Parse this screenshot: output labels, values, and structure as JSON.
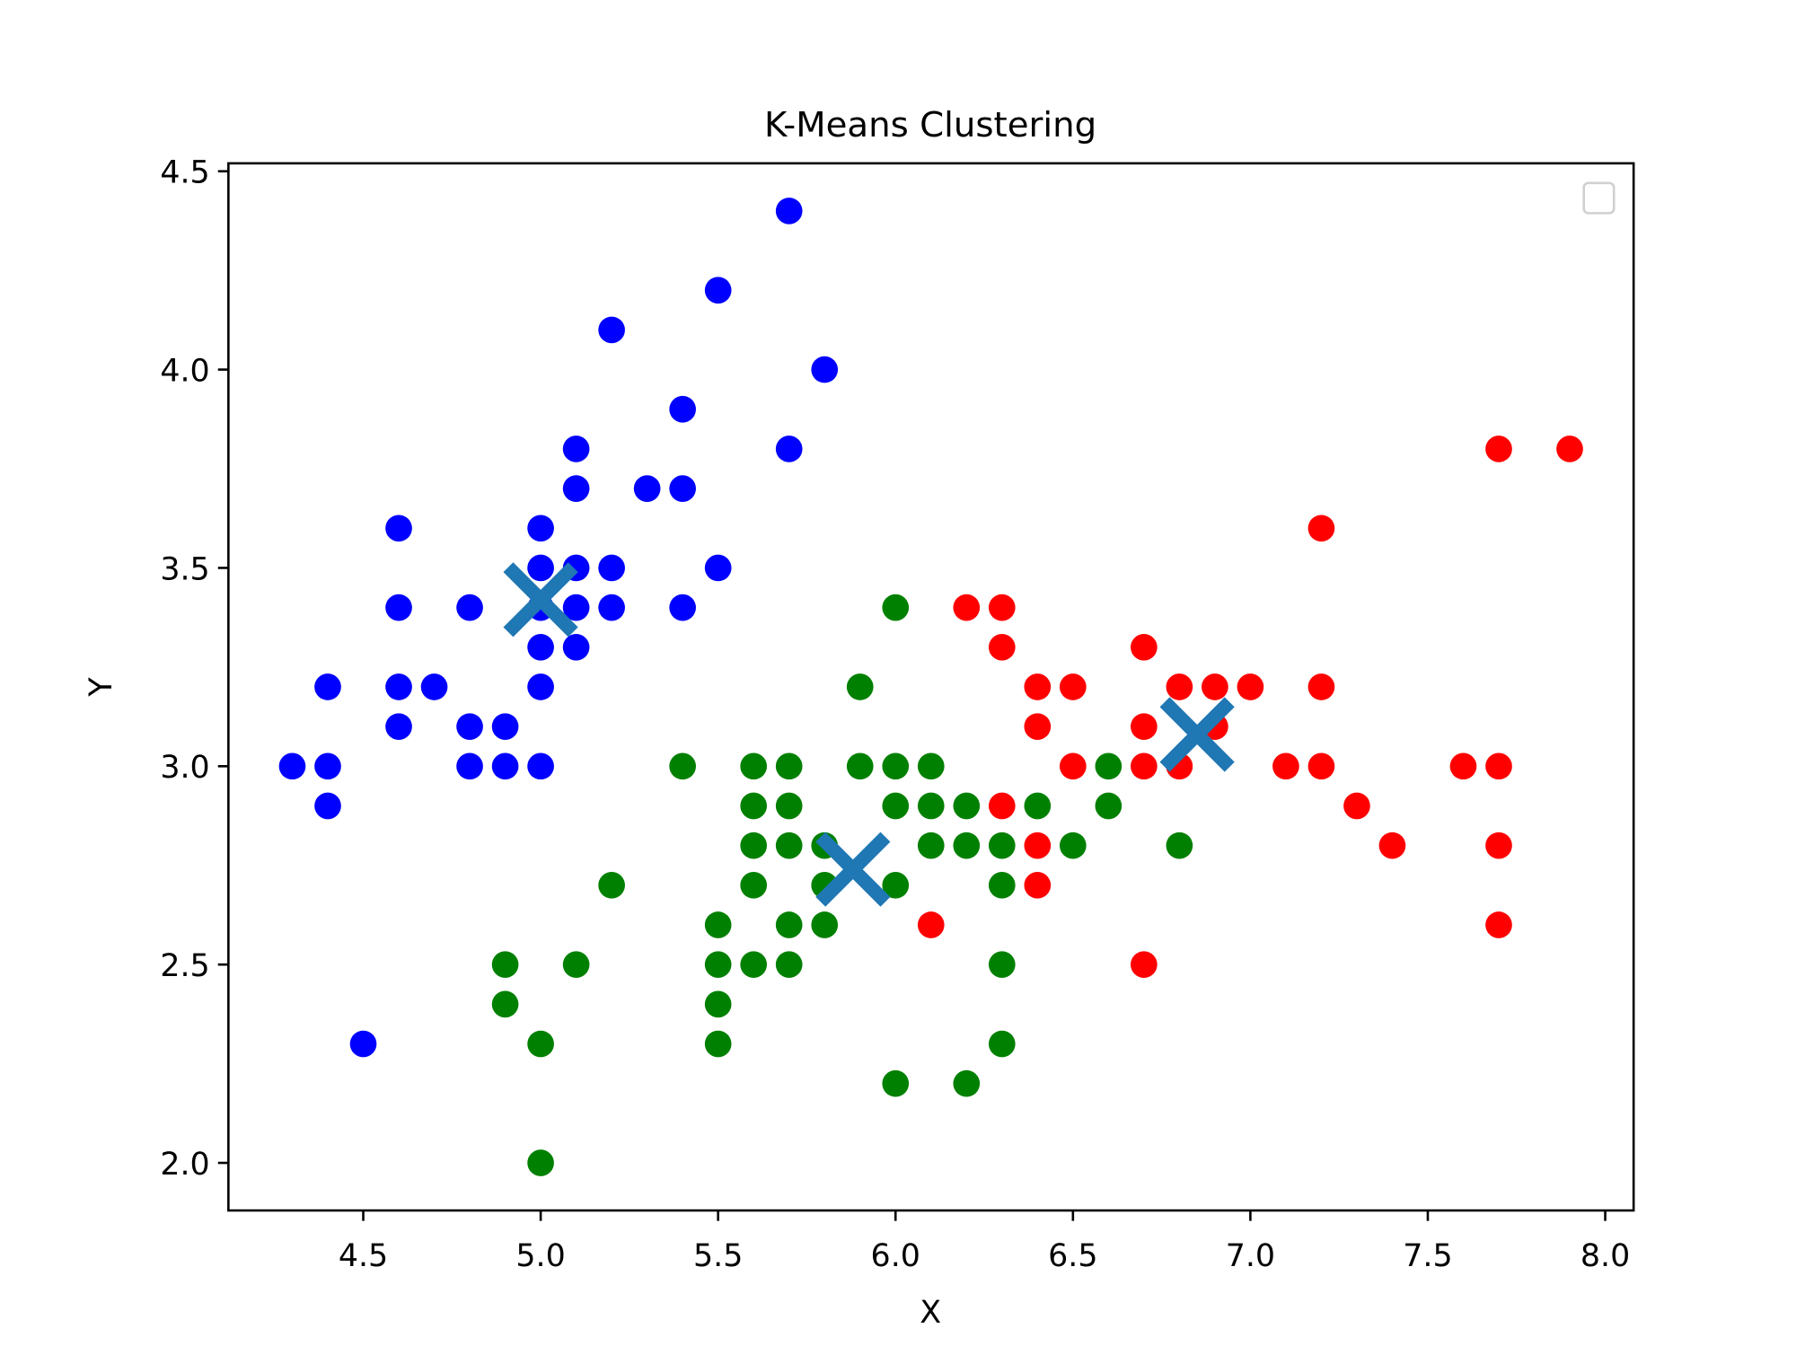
{
  "chart_data": {
    "type": "scatter",
    "title": "K-Means Clustering",
    "xlabel": "X",
    "ylabel": "Y",
    "xlim": [
      4.12,
      8.08
    ],
    "ylim": [
      1.88,
      4.52
    ],
    "xticks": [
      "4.5",
      "5.0",
      "5.5",
      "6.0",
      "6.5",
      "7.0",
      "7.5",
      "8.0"
    ],
    "yticks": [
      "2.0",
      "2.5",
      "3.0",
      "3.5",
      "4.0",
      "4.5"
    ],
    "grid": false,
    "legend": {
      "placement": "top-right",
      "entries": []
    },
    "series": [
      {
        "color": "#0000ff",
        "points": [
          [
            4.3,
            3.0
          ],
          [
            4.4,
            3.0
          ],
          [
            4.4,
            2.9
          ],
          [
            4.4,
            3.2
          ],
          [
            4.5,
            2.3
          ],
          [
            4.6,
            3.1
          ],
          [
            4.6,
            3.2
          ],
          [
            4.6,
            3.4
          ],
          [
            4.6,
            3.6
          ],
          [
            4.7,
            3.2
          ],
          [
            4.8,
            3.0
          ],
          [
            4.8,
            3.1
          ],
          [
            4.8,
            3.4
          ],
          [
            4.9,
            3.0
          ],
          [
            4.9,
            3.1
          ],
          [
            5.0,
            3.0
          ],
          [
            5.0,
            3.2
          ],
          [
            5.0,
            3.3
          ],
          [
            5.0,
            3.4
          ],
          [
            5.0,
            3.5
          ],
          [
            5.0,
            3.6
          ],
          [
            5.1,
            3.3
          ],
          [
            5.1,
            3.4
          ],
          [
            5.1,
            3.5
          ],
          [
            5.1,
            3.7
          ],
          [
            5.1,
            3.8
          ],
          [
            5.2,
            3.4
          ],
          [
            5.2,
            3.5
          ],
          [
            5.2,
            4.1
          ],
          [
            5.3,
            3.7
          ],
          [
            5.4,
            3.4
          ],
          [
            5.4,
            3.7
          ],
          [
            5.4,
            3.9
          ],
          [
            5.5,
            3.5
          ],
          [
            5.5,
            4.2
          ],
          [
            5.7,
            3.8
          ],
          [
            5.7,
            4.4
          ],
          [
            5.8,
            4.0
          ]
        ]
      },
      {
        "color": "#008000",
        "points": [
          [
            4.9,
            2.4
          ],
          [
            4.9,
            2.5
          ],
          [
            5.0,
            2.0
          ],
          [
            5.0,
            2.3
          ],
          [
            5.1,
            2.5
          ],
          [
            5.2,
            2.7
          ],
          [
            5.4,
            3.0
          ],
          [
            5.5,
            2.3
          ],
          [
            5.5,
            2.4
          ],
          [
            5.5,
            2.5
          ],
          [
            5.5,
            2.6
          ],
          [
            5.6,
            2.5
          ],
          [
            5.6,
            2.7
          ],
          [
            5.6,
            2.8
          ],
          [
            5.6,
            2.9
          ],
          [
            5.6,
            3.0
          ],
          [
            5.7,
            2.5
          ],
          [
            5.7,
            2.6
          ],
          [
            5.7,
            2.8
          ],
          [
            5.7,
            2.9
          ],
          [
            5.7,
            3.0
          ],
          [
            5.8,
            2.6
          ],
          [
            5.8,
            2.7
          ],
          [
            5.8,
            2.8
          ],
          [
            5.9,
            3.0
          ],
          [
            5.9,
            3.2
          ],
          [
            6.0,
            2.2
          ],
          [
            6.0,
            2.7
          ],
          [
            6.0,
            2.9
          ],
          [
            6.0,
            3.0
          ],
          [
            6.0,
            3.4
          ],
          [
            6.1,
            2.8
          ],
          [
            6.1,
            2.9
          ],
          [
            6.1,
            3.0
          ],
          [
            6.2,
            2.2
          ],
          [
            6.2,
            2.8
          ],
          [
            6.2,
            2.9
          ],
          [
            6.3,
            2.3
          ],
          [
            6.3,
            2.5
          ],
          [
            6.3,
            2.7
          ],
          [
            6.3,
            2.8
          ],
          [
            6.4,
            2.9
          ],
          [
            6.5,
            2.8
          ],
          [
            6.6,
            2.9
          ],
          [
            6.6,
            3.0
          ],
          [
            6.8,
            2.8
          ]
        ]
      },
      {
        "color": "#ff0000",
        "points": [
          [
            6.1,
            2.6
          ],
          [
            6.2,
            3.4
          ],
          [
            6.3,
            2.9
          ],
          [
            6.3,
            3.3
          ],
          [
            6.3,
            3.4
          ],
          [
            6.4,
            2.7
          ],
          [
            6.4,
            2.8
          ],
          [
            6.4,
            3.1
          ],
          [
            6.4,
            3.2
          ],
          [
            6.5,
            3.0
          ],
          [
            6.5,
            3.2
          ],
          [
            6.7,
            2.5
          ],
          [
            6.7,
            3.0
          ],
          [
            6.7,
            3.1
          ],
          [
            6.7,
            3.3
          ],
          [
            6.8,
            3.0
          ],
          [
            6.8,
            3.2
          ],
          [
            6.9,
            3.1
          ],
          [
            6.9,
            3.2
          ],
          [
            7.0,
            3.2
          ],
          [
            7.1,
            3.0
          ],
          [
            7.2,
            3.0
          ],
          [
            7.2,
            3.2
          ],
          [
            7.2,
            3.6
          ],
          [
            7.3,
            2.9
          ],
          [
            7.4,
            2.8
          ],
          [
            7.6,
            3.0
          ],
          [
            7.7,
            2.6
          ],
          [
            7.7,
            2.8
          ],
          [
            7.7,
            3.0
          ],
          [
            7.7,
            3.8
          ],
          [
            7.9,
            3.8
          ]
        ]
      }
    ],
    "centroids": {
      "color": "#1f77b4",
      "marker": "x",
      "points": [
        [
          5.0,
          3.42
        ],
        [
          5.88,
          2.74
        ],
        [
          6.85,
          3.08
        ]
      ]
    }
  }
}
